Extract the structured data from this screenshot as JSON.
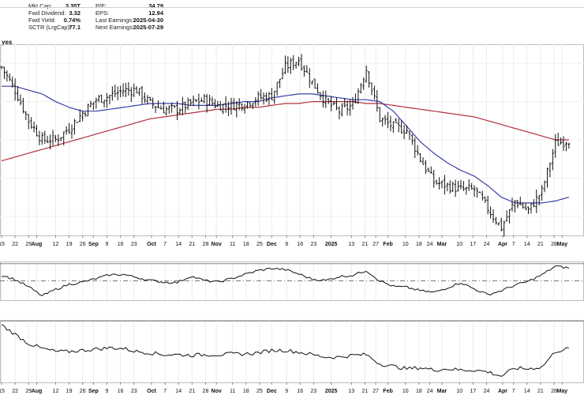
{
  "header": {
    "side_text": "yes",
    "stats_left": [
      {
        "label": "Mkt Cap:",
        "value": "3.35T"
      },
      {
        "label": "Fwd Dividend:",
        "value": "3.32"
      },
      {
        "label": "Fwd Yield:",
        "value": "0.74%"
      },
      {
        "label": "SCTR (LrgCap):",
        "value": "77.1"
      }
    ],
    "stats_right": [
      {
        "label": "P/E:",
        "value": "34.79"
      },
      {
        "label": "EPS:",
        "value": "12.94"
      },
      {
        "label": "Last Earnings:",
        "value": "2025-04-30"
      },
      {
        "label": "Next Earnings:",
        "value": "2025-07-29"
      }
    ]
  },
  "x_axis": {
    "ticks": [
      {
        "label": "15",
        "bold": false,
        "pos": 0.0
      },
      {
        "label": "22",
        "bold": false,
        "pos": 1.0
      },
      {
        "label": "29",
        "bold": false,
        "pos": 2.0
      },
      {
        "label": "Aug",
        "bold": true,
        "pos": 2.6
      },
      {
        "label": "12",
        "bold": false,
        "pos": 4.0
      },
      {
        "label": "19",
        "bold": false,
        "pos": 5.0
      },
      {
        "label": "26",
        "bold": false,
        "pos": 6.0
      },
      {
        "label": "Sep",
        "bold": true,
        "pos": 6.8
      },
      {
        "label": "9",
        "bold": false,
        "pos": 7.8
      },
      {
        "label": "16",
        "bold": false,
        "pos": 8.8
      },
      {
        "label": "23",
        "bold": false,
        "pos": 9.8
      },
      {
        "label": "Oct",
        "bold": true,
        "pos": 11.1
      },
      {
        "label": "7",
        "bold": false,
        "pos": 12.1
      },
      {
        "label": "14",
        "bold": false,
        "pos": 13.1
      },
      {
        "label": "21",
        "bold": false,
        "pos": 14.1
      },
      {
        "label": "28",
        "bold": false,
        "pos": 15.1
      },
      {
        "label": "Nov",
        "bold": true,
        "pos": 15.9
      },
      {
        "label": "11",
        "bold": false,
        "pos": 17.1
      },
      {
        "label": "18",
        "bold": false,
        "pos": 18.1
      },
      {
        "label": "25",
        "bold": false,
        "pos": 19.1
      },
      {
        "label": "Dec",
        "bold": true,
        "pos": 20.0
      },
      {
        "label": "9",
        "bold": false,
        "pos": 21.1
      },
      {
        "label": "16",
        "bold": false,
        "pos": 22.1
      },
      {
        "label": "23",
        "bold": false,
        "pos": 23.1
      },
      {
        "label": "2025",
        "bold": true,
        "pos": 24.4
      },
      {
        "label": "13",
        "bold": false,
        "pos": 25.9
      },
      {
        "label": "21",
        "bold": false,
        "pos": 26.9
      },
      {
        "label": "27",
        "bold": false,
        "pos": 27.7
      },
      {
        "label": "Feb",
        "bold": true,
        "pos": 28.6
      },
      {
        "label": "10",
        "bold": false,
        "pos": 29.9
      },
      {
        "label": "18",
        "bold": false,
        "pos": 30.9
      },
      {
        "label": "24",
        "bold": false,
        "pos": 31.7
      },
      {
        "label": "Mar",
        "bold": true,
        "pos": 32.6
      },
      {
        "label": "10",
        "bold": false,
        "pos": 33.9
      },
      {
        "label": "17",
        "bold": false,
        "pos": 34.9
      },
      {
        "label": "24",
        "bold": false,
        "pos": 35.9
      },
      {
        "label": "Apr",
        "bold": true,
        "pos": 37.1
      },
      {
        "label": "7",
        "bold": false,
        "pos": 37.9
      },
      {
        "label": "14",
        "bold": false,
        "pos": 38.9
      },
      {
        "label": "21",
        "bold": false,
        "pos": 39.9
      },
      {
        "label": "28",
        "bold": false,
        "pos": 40.9
      },
      {
        "label": "May",
        "bold": true,
        "pos": 41.5
      }
    ],
    "week_range": [
      0,
      43
    ]
  },
  "chart_data": [
    {
      "type": "ohlc",
      "series": [
        {
          "name": "",
          "kind": "price",
          "color": "#111111",
          "weekly_close": [
            188,
            176,
            160,
            150,
            150,
            156,
            164,
            171,
            173,
            176,
            176,
            169,
            166,
            166,
            169,
            171,
            168,
            168,
            169,
            172,
            173,
            188,
            192,
            180,
            170,
            165,
            168,
            187,
            161,
            157,
            155,
            140,
            128,
            126,
            124,
            124,
            114,
            104,
            118,
            113,
            123,
            148,
            150
          ]
        },
        {
          "name": "",
          "kind": "moving-average",
          "color": "#3b3fa8",
          "weekly_value": [
            178,
            178,
            176,
            174,
            170,
            167,
            165,
            165,
            166,
            167,
            168,
            169,
            169,
            169,
            168,
            168,
            168,
            169,
            170,
            170,
            172,
            173,
            174,
            174,
            173,
            172,
            171,
            171,
            170,
            165,
            157,
            149,
            143,
            138,
            134,
            131,
            126,
            120,
            117,
            117,
            117,
            118,
            120
          ]
        },
        {
          "name": "",
          "kind": "moving-average",
          "color": "#b03040",
          "weekly_value": [
            139,
            141,
            143,
            145,
            147,
            149,
            151,
            153,
            155,
            157,
            159,
            161,
            162,
            163,
            164,
            165,
            166,
            166,
            167,
            167,
            168,
            169,
            169,
            170,
            170,
            170,
            170,
            169,
            169,
            168,
            167,
            166,
            165,
            164,
            163,
            162,
            160,
            158,
            156,
            154,
            152,
            150,
            150
          ]
        }
      ],
      "ylim": [
        100,
        200
      ]
    },
    {
      "type": "line",
      "series": [
        {
          "name": "",
          "color": "#111111",
          "weekly_value": [
            1.3,
            0.3,
            -1.4,
            -3.5,
            -2.0,
            -0.8,
            -0.3,
            0.5,
            1.4,
            1.5,
            0.8,
            0.1,
            -0.3,
            -0.4,
            1.1,
            0.1,
            -0.3,
            0.5,
            1.5,
            2.4,
            2.9,
            2.6,
            1.6,
            0.4,
            0.1,
            1.0,
            1.3,
            2.4,
            0.0,
            -1.3,
            -1.5,
            -2.3,
            -2.7,
            -1.6,
            -0.4,
            -1.9,
            -3.2,
            -2.3,
            -1.0,
            -0.1,
            1.4,
            3.4,
            3.0
          ]
        }
      ],
      "ylim": [
        -4.5,
        4.5
      ],
      "reference_lines": [
        0.0,
        4.0
      ]
    },
    {
      "type": "line",
      "series": [
        {
          "name": "",
          "color": "#111111",
          "weekly_value": [
            0.93,
            0.78,
            0.63,
            0.55,
            0.5,
            0.5,
            0.52,
            0.54,
            0.56,
            0.55,
            0.5,
            0.48,
            0.45,
            0.45,
            0.44,
            0.45,
            0.45,
            0.46,
            0.46,
            0.48,
            0.52,
            0.52,
            0.49,
            0.45,
            0.41,
            0.41,
            0.44,
            0.45,
            0.3,
            0.26,
            0.22,
            0.24,
            0.2,
            0.22,
            0.2,
            0.2,
            0.17,
            0.1,
            0.23,
            0.22,
            0.25,
            0.5,
            0.55
          ]
        }
      ],
      "ylim": [
        0,
        1
      ],
      "reference_lines": [
        1.0
      ]
    }
  ]
}
